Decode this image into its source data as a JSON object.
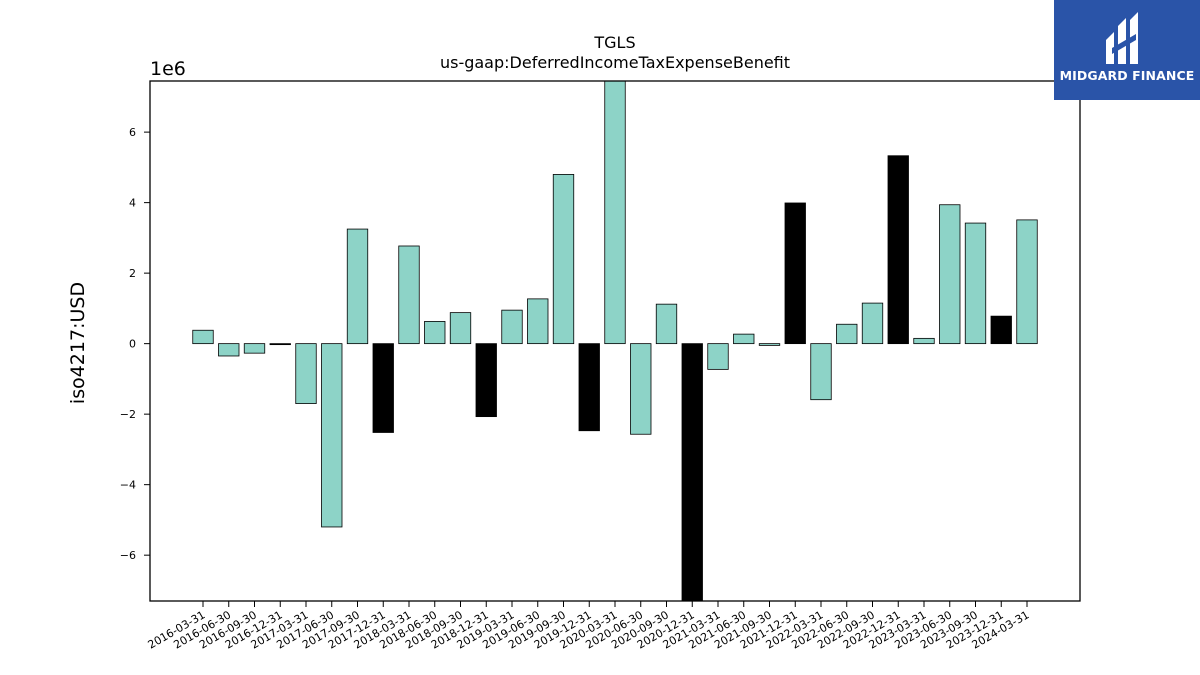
{
  "brand": {
    "name": "MIDGARD FINANCE",
    "bg_color": "#2a54a8"
  },
  "chart_data": {
    "type": "bar",
    "title": "TGLS",
    "subtitle": "us-gaap:DeferredIncomeTaxExpenseBenefit",
    "ylabel": "iso4217:USD",
    "xlabel": "",
    "y_scale_label": "1e6",
    "ylim": [
      -7.3,
      7.45
    ],
    "y_unit_multiplier": 1000000,
    "yticks": [
      -6,
      -4,
      -2,
      0,
      2,
      4,
      6
    ],
    "ytick_labels": [
      "−6",
      "−4",
      "−2",
      "0",
      "2",
      "4",
      "6"
    ],
    "grid": false,
    "legend": "none",
    "colors": {
      "regular": "#8dd3c7",
      "q4": "#000000",
      "edge": "#000000"
    },
    "categories": [
      "2016-03-31",
      "2016-06-30",
      "2016-09-30",
      "2016-12-31",
      "2017-03-31",
      "2017-06-30",
      "2017-09-30",
      "2017-12-31",
      "2018-03-31",
      "2018-06-30",
      "2018-09-30",
      "2018-12-31",
      "2019-03-31",
      "2019-06-30",
      "2019-09-30",
      "2019-12-31",
      "2020-03-31",
      "2020-06-30",
      "2020-09-30",
      "2020-12-31",
      "2021-03-31",
      "2021-06-30",
      "2021-09-30",
      "2021-12-31",
      "2022-03-31",
      "2022-06-30",
      "2022-09-30",
      "2022-12-31",
      "2023-03-31",
      "2023-06-30",
      "2023-09-30",
      "2023-12-31",
      "2024-03-31"
    ],
    "values": [
      0.38,
      -0.35,
      -0.27,
      -0.02,
      -1.7,
      -5.2,
      3.25,
      -2.52,
      2.77,
      0.63,
      0.88,
      -2.07,
      0.95,
      1.27,
      4.8,
      -2.47,
      7.45,
      -2.57,
      1.12,
      -7.3,
      -0.73,
      0.27,
      -0.05,
      3.99,
      -1.59,
      0.55,
      1.15,
      5.33,
      0.15,
      3.94,
      3.42,
      0.78,
      3.51
    ],
    "highlighted": [
      false,
      false,
      false,
      true,
      false,
      false,
      false,
      true,
      false,
      false,
      false,
      true,
      false,
      false,
      false,
      true,
      false,
      false,
      false,
      true,
      false,
      false,
      false,
      true,
      false,
      false,
      false,
      true,
      false,
      false,
      false,
      true,
      false
    ]
  }
}
